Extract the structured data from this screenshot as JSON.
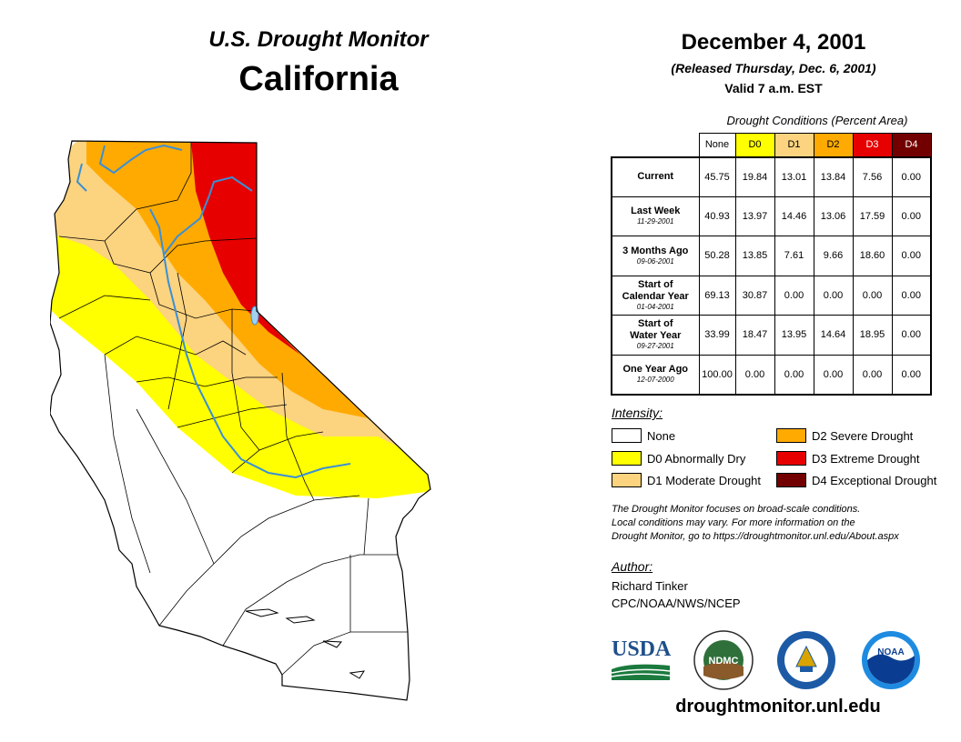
{
  "header": {
    "subtitle": "U.S. Drought Monitor",
    "state": "California",
    "date": "December 4, 2001",
    "released": "(Released Thursday, Dec. 6, 2001)",
    "valid": "Valid 7 a.m. EST"
  },
  "table": {
    "caption": "Drought Conditions (Percent Area)",
    "columns": [
      "None",
      "D0",
      "D1",
      "D2",
      "D3",
      "D4"
    ],
    "column_colors": [
      "#ffffff",
      "#ffff00",
      "#fcd37f",
      "#ffaa00",
      "#e60000",
      "#730000"
    ],
    "rows": [
      {
        "label": "Current",
        "date": "",
        "values": [
          "45.75",
          "19.84",
          "13.01",
          "13.84",
          "7.56",
          "0.00"
        ]
      },
      {
        "label": "Last Week",
        "date": "11-29-2001",
        "values": [
          "40.93",
          "13.97",
          "14.46",
          "13.06",
          "17.59",
          "0.00"
        ]
      },
      {
        "label": "3 Months Ago",
        "date": "09-06-2001",
        "values": [
          "50.28",
          "13.85",
          "7.61",
          "9.66",
          "18.60",
          "0.00"
        ]
      },
      {
        "label": "Start of Calendar Year",
        "label_line1": "Start of",
        "label_line2": "Calendar Year",
        "date": "01-04-2001",
        "values": [
          "69.13",
          "30.87",
          "0.00",
          "0.00",
          "0.00",
          "0.00"
        ]
      },
      {
        "label": "Start of Water Year",
        "label_line1": "Start of",
        "label_line2": "Water Year",
        "date": "09-27-2001",
        "values": [
          "33.99",
          "18.47",
          "13.95",
          "14.64",
          "18.95",
          "0.00"
        ]
      },
      {
        "label": "One Year Ago",
        "date": "12-07-2000",
        "values": [
          "100.00",
          "0.00",
          "0.00",
          "0.00",
          "0.00",
          "0.00"
        ]
      }
    ]
  },
  "legend": {
    "title": "Intensity:",
    "items": [
      {
        "label": "None",
        "color": "#ffffff"
      },
      {
        "label": "D0 Abnormally Dry",
        "color": "#ffff00"
      },
      {
        "label": "D1 Moderate Drought",
        "color": "#fcd37f"
      },
      {
        "label": "D2 Severe Drought",
        "color": "#ffaa00"
      },
      {
        "label": "D3 Extreme Drought",
        "color": "#e60000"
      },
      {
        "label": "D4 Exceptional Drought",
        "color": "#730000"
      }
    ]
  },
  "note": {
    "line1": "The Drought Monitor focuses on broad-scale conditions.",
    "line2": "Local conditions may vary. For more information on the",
    "line3": "Drought Monitor, go to https://droughtmonitor.unl.edu/About.aspx"
  },
  "author": {
    "title": "Author:",
    "name": "Richard Tinker",
    "org": "CPC/NOAA/NWS/NCEP"
  },
  "logos": {
    "usda": "USDA",
    "ndmc": "NDMC",
    "noaa": "NOAA"
  },
  "website": "droughtmonitor.unl.edu"
}
